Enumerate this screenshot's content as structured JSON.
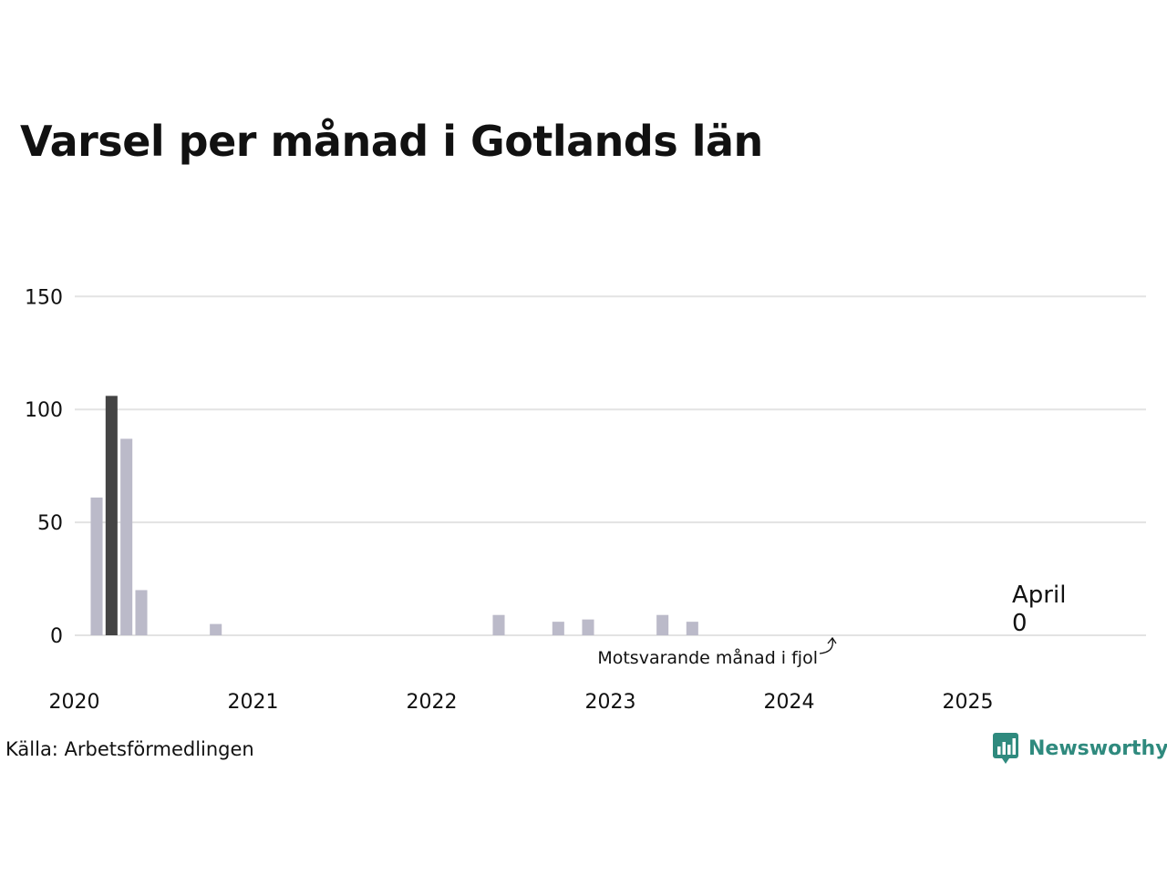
{
  "title": "Varsel per månad i Gotlands län",
  "source": "Källa: Arbetsförmedlingen",
  "brand": {
    "name": "Newsworthy",
    "icon": "newsworthy-logo-icon",
    "color": "#2f8a7e"
  },
  "chart_data": {
    "type": "bar",
    "title": "Varsel per månad i Gotlands län",
    "xlabel": "",
    "ylabel": "",
    "ylim": [
      0,
      195
    ],
    "yticks": [
      0,
      50,
      100,
      150
    ],
    "yticks_labels": [
      "0",
      "50",
      "100",
      "150"
    ],
    "xticks": [
      "2020",
      "2021",
      "2022",
      "2023",
      "2024",
      "2025"
    ],
    "grid": true,
    "colors": {
      "default": "#bbbac9",
      "highlight": "#444444",
      "grid": "#e3e3e3"
    },
    "start": "2020-01",
    "values": [
      0,
      61,
      106,
      87,
      20,
      0,
      0,
      0,
      0,
      5,
      0,
      0,
      0,
      0,
      0,
      0,
      0,
      0,
      0,
      0,
      0,
      0,
      0,
      0,
      0,
      0,
      0,
      0,
      9,
      0,
      0,
      0,
      6,
      0,
      7,
      0,
      0,
      0,
      0,
      9,
      0,
      6,
      0,
      0,
      0,
      0,
      0,
      0,
      0,
      0,
      0,
      0,
      0,
      0,
      0,
      0,
      0,
      0,
      0,
      0,
      0,
      0,
      0,
      0,
      0,
      0,
      0,
      0,
      0,
      0,
      0,
      0
    ],
    "highlight_months": [
      "2020-03",
      "2022-04"
    ],
    "annotation": "Motsvarande månad i fjol",
    "callout": {
      "label": "April",
      "value": "0"
    }
  }
}
